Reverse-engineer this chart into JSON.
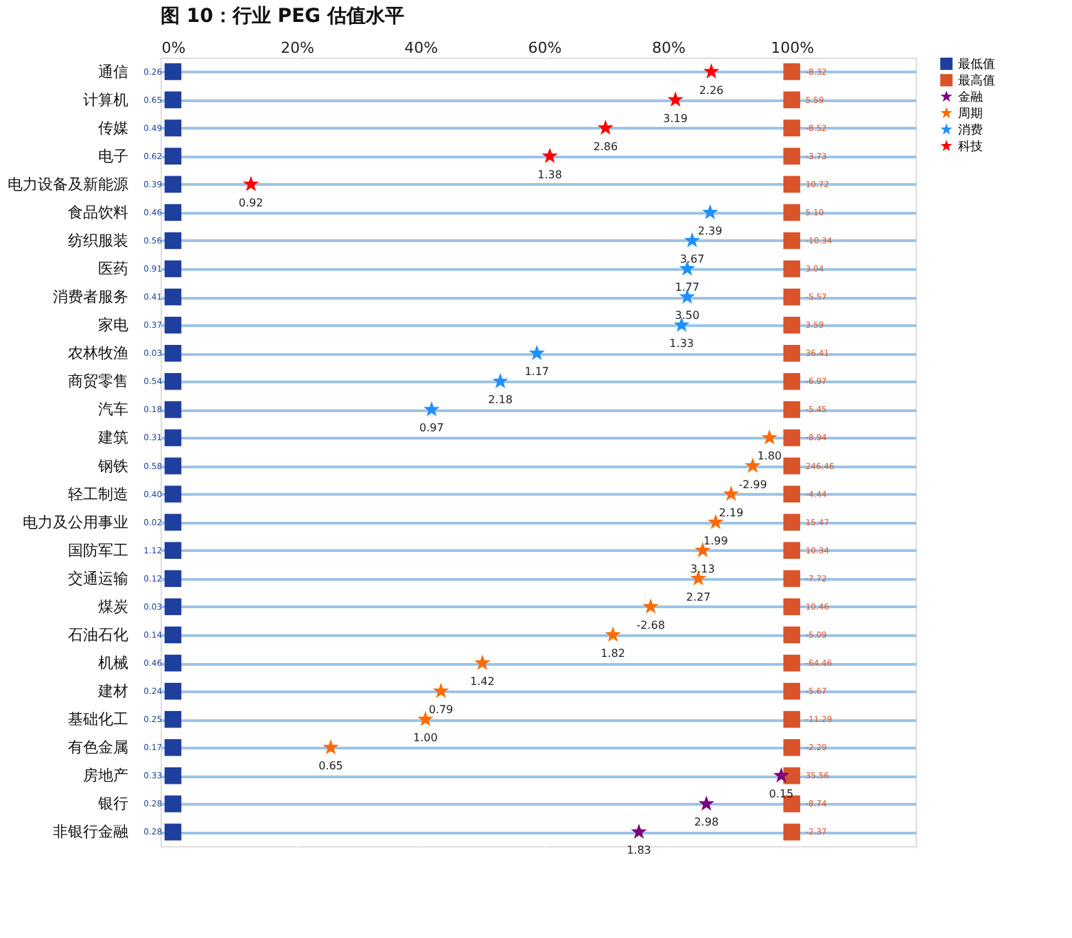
{
  "chart_data": {
    "type": "scatter",
    "orientation": "horizontal",
    "title": "图 10：行业 PEG 估值水平",
    "categories": [
      "通信",
      "计算机",
      "传媒",
      "电子",
      "电力设备及新能源",
      "食品饮料",
      "纺织服装",
      "医药",
      "消费者服务",
      "家电",
      "农林牧渔",
      "商贸零售",
      "汽车",
      "建筑",
      "钢铁",
      "轻工制造",
      "电力及公用事业",
      "国防军工",
      "交通运输",
      "煤炭",
      "石油石化",
      "机械",
      "建材",
      "基础化工",
      "有色金属",
      "房地产",
      "银行",
      "非银行金融"
    ],
    "xlim": [
      -2,
      120
    ],
    "xticks": [
      {
        "value": 0,
        "label": "0%"
      },
      {
        "value": 20,
        "label": "20%"
      },
      {
        "value": 40,
        "label": "40%"
      },
      {
        "value": 60,
        "label": "60%"
      },
      {
        "value": 80,
        "label": "80%"
      },
      {
        "value": 100,
        "label": "100%"
      }
    ],
    "grid": true,
    "legend": "right",
    "series": [
      {
        "name": "最低值",
        "color": "#1f3f9f",
        "marker": "square",
        "values": [
          0,
          0,
          0,
          0,
          0,
          0,
          0,
          0,
          0,
          0,
          0,
          0,
          0,
          0,
          0,
          0,
          0,
          0,
          0,
          0,
          0,
          0,
          0,
          0,
          0,
          0,
          0,
          0
        ]
      },
      {
        "name": "最高值",
        "color": "#d9542b",
        "marker": "square",
        "values": [
          100,
          100,
          100,
          100,
          100,
          100,
          100,
          100,
          100,
          100,
          100,
          100,
          100,
          100,
          100,
          100,
          100,
          100,
          100,
          100,
          100,
          100,
          100,
          100,
          100,
          100,
          100,
          100
        ]
      },
      {
        "name": "金融",
        "color": "#7b0080",
        "marker": "star",
        "values": [
          null,
          null,
          null,
          null,
          null,
          null,
          null,
          null,
          null,
          null,
          null,
          null,
          null,
          null,
          null,
          null,
          null,
          null,
          null,
          null,
          null,
          null,
          null,
          null,
          null,
          98.3,
          86.2,
          75.3
        ]
      },
      {
        "name": "周期",
        "color": "#ff6a00",
        "marker": "star",
        "values": [
          null,
          null,
          null,
          null,
          null,
          null,
          null,
          null,
          null,
          null,
          null,
          null,
          null,
          96.4,
          93.7,
          90.2,
          87.7,
          85.6,
          84.9,
          77.2,
          71.1,
          50.0,
          43.3,
          40.8,
          25.5,
          null,
          null,
          null
        ]
      },
      {
        "name": "消费",
        "color": "#1e90ff",
        "marker": "star",
        "values": [
          null,
          null,
          null,
          null,
          null,
          86.8,
          83.9,
          83.1,
          83.1,
          82.2,
          58.8,
          52.9,
          41.8,
          null,
          null,
          null,
          null,
          null,
          null,
          null,
          null,
          null,
          null,
          null,
          null,
          null,
          null,
          null
        ]
      },
      {
        "name": "科技",
        "color": "#ff0000",
        "marker": "star",
        "values": [
          87.0,
          81.2,
          69.9,
          60.9,
          12.6,
          null,
          null,
          null,
          null,
          null,
          null,
          null,
          null,
          null,
          null,
          null,
          null,
          null,
          null,
          null,
          null,
          null,
          null,
          null,
          null,
          null,
          null,
          null
        ]
      }
    ],
    "annotations": [
      {
        "text": "0.26",
        "x": 0,
        "y": "通信"
      },
      {
        "text": "0.65",
        "x": 0,
        "y": "计算机"
      },
      {
        "text": "0.49",
        "x": 0,
        "y": "传媒"
      },
      {
        "text": "0.62",
        "x": 0,
        "y": "电子"
      },
      {
        "text": "0.39",
        "x": 0,
        "y": "电力设备及新能源"
      },
      {
        "text": "0.46",
        "x": 0,
        "y": "食品饮料"
      },
      {
        "text": "0.56",
        "x": 0,
        "y": "纺织服装"
      },
      {
        "text": "0.91",
        "x": 0,
        "y": "医药"
      },
      {
        "text": "0.41",
        "x": 0,
        "y": "消费者服务"
      },
      {
        "text": "0.37",
        "x": 0,
        "y": "家电"
      },
      {
        "text": "0.03",
        "x": 0,
        "y": "农林牧渔"
      },
      {
        "text": "0.54",
        "x": 0,
        "y": "商贸零售"
      },
      {
        "text": "0.18",
        "x": 0,
        "y": "汽车"
      },
      {
        "text": "0.31",
        "x": 0,
        "y": "建筑"
      },
      {
        "text": "0.58",
        "x": 0,
        "y": "钢铁"
      },
      {
        "text": "0.40",
        "x": 0,
        "y": "轻工制造"
      },
      {
        "text": "0.02",
        "x": 0,
        "y": "电力及公用事业"
      },
      {
        "text": "1.12",
        "x": 0,
        "y": "国防军工"
      },
      {
        "text": "0.12",
        "x": 0,
        "y": "交通运输"
      },
      {
        "text": "0.03",
        "x": 0,
        "y": "煤炭"
      },
      {
        "text": "0.14",
        "x": 0,
        "y": "石油石化"
      },
      {
        "text": "0.46",
        "x": 0,
        "y": "机械"
      },
      {
        "text": "0.24",
        "x": 0,
        "y": "建材"
      },
      {
        "text": "0.25",
        "x": 0,
        "y": "基础化工"
      },
      {
        "text": "0.17",
        "x": 0,
        "y": "有色金属"
      },
      {
        "text": "0.33",
        "x": 0,
        "y": "房地产"
      },
      {
        "text": "0.28",
        "x": 0,
        "y": "银行"
      },
      {
        "text": "0.28",
        "x": 0,
        "y": "非银行金融"
      },
      {
        "text": "-8.32",
        "x": 100,
        "y": "通信"
      },
      {
        "text": "5.59",
        "x": 100,
        "y": "计算机"
      },
      {
        "text": "-8.52",
        "x": 100,
        "y": "传媒"
      },
      {
        "text": "-3.73",
        "x": 100,
        "y": "电子"
      },
      {
        "text": "10.72",
        "x": 100,
        "y": "电力设备及新能源"
      },
      {
        "text": "5.10",
        "x": 100,
        "y": "食品饮料"
      },
      {
        "text": "-10.34",
        "x": 100,
        "y": "纺织服装"
      },
      {
        "text": "3.04",
        "x": 100,
        "y": "医药"
      },
      {
        "text": "-5.57",
        "x": 100,
        "y": "消费者服务"
      },
      {
        "text": "3.59",
        "x": 100,
        "y": "家电"
      },
      {
        "text": "36.41",
        "x": 100,
        "y": "农林牧渔"
      },
      {
        "text": "-6.97",
        "x": 100,
        "y": "商贸零售"
      },
      {
        "text": "-5.45",
        "x": 100,
        "y": "汽车"
      },
      {
        "text": "-8.94",
        "x": 100,
        "y": "建筑"
      },
      {
        "text": "246.46",
        "x": 100,
        "y": "钢铁"
      },
      {
        "text": "-4.44",
        "x": 100,
        "y": "轻工制造"
      },
      {
        "text": "15.47",
        "x": 100,
        "y": "电力及公用事业"
      },
      {
        "text": "10.34",
        "x": 100,
        "y": "国防军工"
      },
      {
        "text": "-7.72",
        "x": 100,
        "y": "交通运输"
      },
      {
        "text": "10.46",
        "x": 100,
        "y": "煤炭"
      },
      {
        "text": "-5.09",
        "x": 100,
        "y": "石油石化"
      },
      {
        "text": "-64.46",
        "x": 100,
        "y": "机械"
      },
      {
        "text": "-5.67",
        "x": 100,
        "y": "建材"
      },
      {
        "text": "-11.29",
        "x": 100,
        "y": "基础化工"
      },
      {
        "text": "-2.29",
        "x": 100,
        "y": "有色金属"
      },
      {
        "text": "35.56",
        "x": 100,
        "y": "房地产"
      },
      {
        "text": "-8.74",
        "x": 100,
        "y": "银行"
      },
      {
        "text": "-2.37",
        "x": 100,
        "y": "非银行金融"
      },
      {
        "text": "2.26",
        "x": 87.0,
        "y": "通信"
      },
      {
        "text": "3.19",
        "x": 81.2,
        "y": "计算机"
      },
      {
        "text": "2.86",
        "x": 69.9,
        "y": "传媒"
      },
      {
        "text": "1.38",
        "x": 60.9,
        "y": "电子"
      },
      {
        "text": "0.92",
        "x": 12.6,
        "y": "电力设备及新能源"
      },
      {
        "text": "2.39",
        "x": 86.8,
        "y": "食品饮料"
      },
      {
        "text": "3.67",
        "x": 83.9,
        "y": "纺织服装"
      },
      {
        "text": "1.77",
        "x": 83.1,
        "y": "医药"
      },
      {
        "text": "3.50",
        "x": 83.1,
        "y": "消费者服务"
      },
      {
        "text": "1.33",
        "x": 82.2,
        "y": "家电"
      },
      {
        "text": "1.17",
        "x": 58.8,
        "y": "农林牧渔"
      },
      {
        "text": "2.18",
        "x": 52.9,
        "y": "商贸零售"
      },
      {
        "text": "0.97",
        "x": 41.8,
        "y": "汽车"
      },
      {
        "text": "1.80",
        "x": 96.4,
        "y": "建筑"
      },
      {
        "text": "-2.99",
        "x": 93.7,
        "y": "钢铁"
      },
      {
        "text": "2.19",
        "x": 90.2,
        "y": "轻工制造"
      },
      {
        "text": "1.99",
        "x": 87.7,
        "y": "电力及公用事业"
      },
      {
        "text": "3.13",
        "x": 85.6,
        "y": "国防军工"
      },
      {
        "text": "2.27",
        "x": 84.9,
        "y": "交通运输"
      },
      {
        "text": "-2.68",
        "x": 77.2,
        "y": "煤炭"
      },
      {
        "text": "1.82",
        "x": 71.1,
        "y": "石油石化"
      },
      {
        "text": "1.42",
        "x": 50.0,
        "y": "机械"
      },
      {
        "text": "0.79",
        "x": 43.3,
        "y": "建材"
      },
      {
        "text": "1.00",
        "x": 40.8,
        "y": "基础化工"
      },
      {
        "text": "0.65",
        "x": 25.5,
        "y": "有色金属"
      },
      {
        "text": "0.15",
        "x": 98.3,
        "y": "房地产"
      },
      {
        "text": "2.98",
        "x": 86.2,
        "y": "银行"
      },
      {
        "text": "1.83",
        "x": 75.3,
        "y": "非银行金融"
      }
    ]
  }
}
